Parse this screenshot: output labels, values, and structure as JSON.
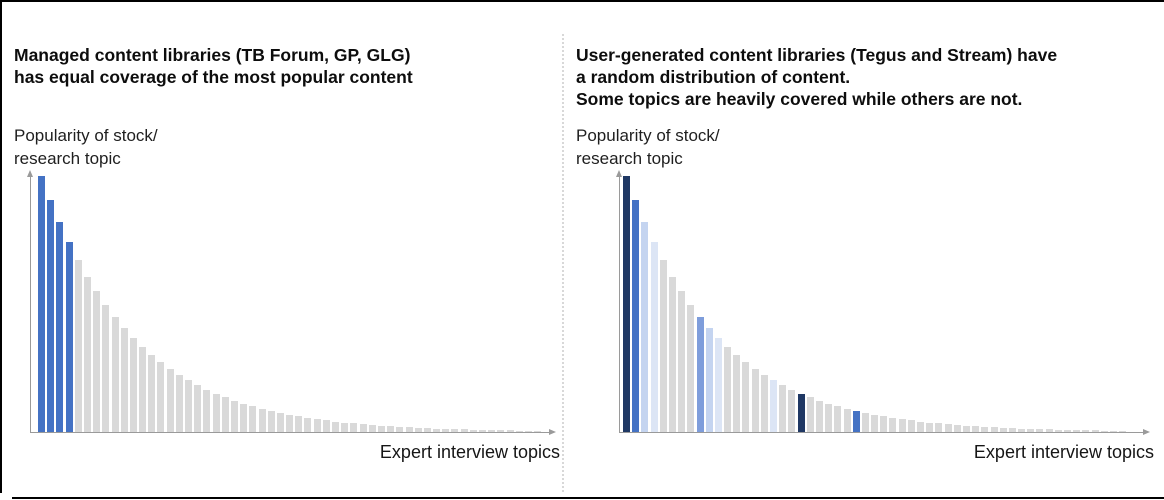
{
  "page": {
    "background": "#FFFFFF",
    "frame_border_color": "#000000",
    "divider": "dotted vertical line separating the two chart panels"
  },
  "panels": [
    {
      "title_lines": [
        "Managed content libraries (TB Forum, GP, GLG)",
        "has equal coverage of the most popular content",
        ""
      ],
      "y_axis_label_lines": [
        "Popularity of stock/",
        "research topic"
      ],
      "x_axis_label": "Expert interview topics"
    },
    {
      "title_lines": [
        "User-generated content libraries (Tegus and Stream) have",
        "a random distribution of content.",
        "Some topics are heavily covered while others are not."
      ],
      "y_axis_label_lines": [
        "Popularity of stock/",
        "research topic"
      ],
      "x_axis_label": "Expert interview topics"
    }
  ],
  "chart_data": [
    {
      "type": "bar",
      "title": "Managed content libraries (TB Forum, GP, GLG) has equal coverage of the most popular content",
      "xlabel": "Expert interview topics",
      "ylabel": "Popularity of stock/research topic",
      "x": "topics ranked 1-55 by popularity (no tick labels shown)",
      "ylim": [
        0,
        260
      ],
      "grid": false,
      "tick_labels": "none",
      "axis_arrows": true,
      "n_bars": 55,
      "values": [
        256,
        231.7,
        209.7,
        189.8,
        171.7,
        155.4,
        140.6,
        127.3,
        115.2,
        104.2,
        94.3,
        85.4,
        77.3,
        69.9,
        63.3,
        57.3,
        51.8,
        46.9,
        42.4,
        38.4,
        34.8,
        31.5,
        28.5,
        25.8,
        23.3,
        21.1,
        19.1,
        17.3,
        15.6,
        14.2,
        12.8,
        11.6,
        10.5,
        9.5,
        8.6,
        7.8,
        7.0,
        6.4,
        5.8,
        5.2,
        4.7,
        4.3,
        3.9,
        3.5,
        3.2,
        2.9,
        2.6,
        2.4,
        2.1,
        1.9,
        1.8,
        1.6,
        1.5,
        1.5,
        1.5
      ],
      "default_color": "gray",
      "highlights": {
        "blue": [
          1,
          2,
          3,
          4
        ]
      },
      "palette": {
        "navy": "#1F3864",
        "blue": "#4472C4",
        "cornflower": "#7E9DDB",
        "lightblue1": "#C4D4F0",
        "lightblue2": "#DCE5F5",
        "gray": "#D9D9D9"
      }
    },
    {
      "type": "bar",
      "title": "User-generated content libraries (Tegus and Stream) have a random distribution of content. Some topics are heavily covered while others are not.",
      "xlabel": "Expert interview topics",
      "ylabel": "Popularity of stock/research topic",
      "x": "topics ranked 1-55 by popularity (no tick labels shown)",
      "ylim": [
        0,
        260
      ],
      "grid": false,
      "tick_labels": "none",
      "axis_arrows": true,
      "n_bars": 55,
      "values": [
        256,
        231.7,
        209.7,
        189.8,
        171.7,
        155.4,
        140.6,
        127.3,
        115.2,
        104.2,
        94.3,
        85.4,
        77.3,
        69.9,
        63.3,
        57.3,
        51.8,
        46.9,
        42.4,
        38.4,
        34.8,
        31.5,
        28.5,
        25.8,
        23.3,
        21.1,
        19.1,
        17.3,
        15.6,
        14.2,
        12.8,
        11.6,
        10.5,
        9.5,
        8.6,
        7.8,
        7.0,
        6.4,
        5.8,
        5.2,
        4.7,
        4.3,
        3.9,
        3.5,
        3.2,
        2.9,
        2.6,
        2.4,
        2.1,
        1.9,
        1.8,
        1.6,
        1.5,
        1.5,
        1.5
      ],
      "default_color": "gray",
      "highlights": {
        "navy": [
          1,
          20
        ],
        "blue": [
          2,
          26
        ],
        "lightblue1": [
          3,
          10
        ],
        "lightblue2": [
          4,
          11,
          17
        ],
        "cornflower": [
          9
        ]
      },
      "palette": {
        "navy": "#1F3864",
        "blue": "#4472C4",
        "cornflower": "#7E9DDB",
        "lightblue1": "#C4D4F0",
        "lightblue2": "#DCE5F5",
        "gray": "#D9D9D9"
      }
    }
  ]
}
